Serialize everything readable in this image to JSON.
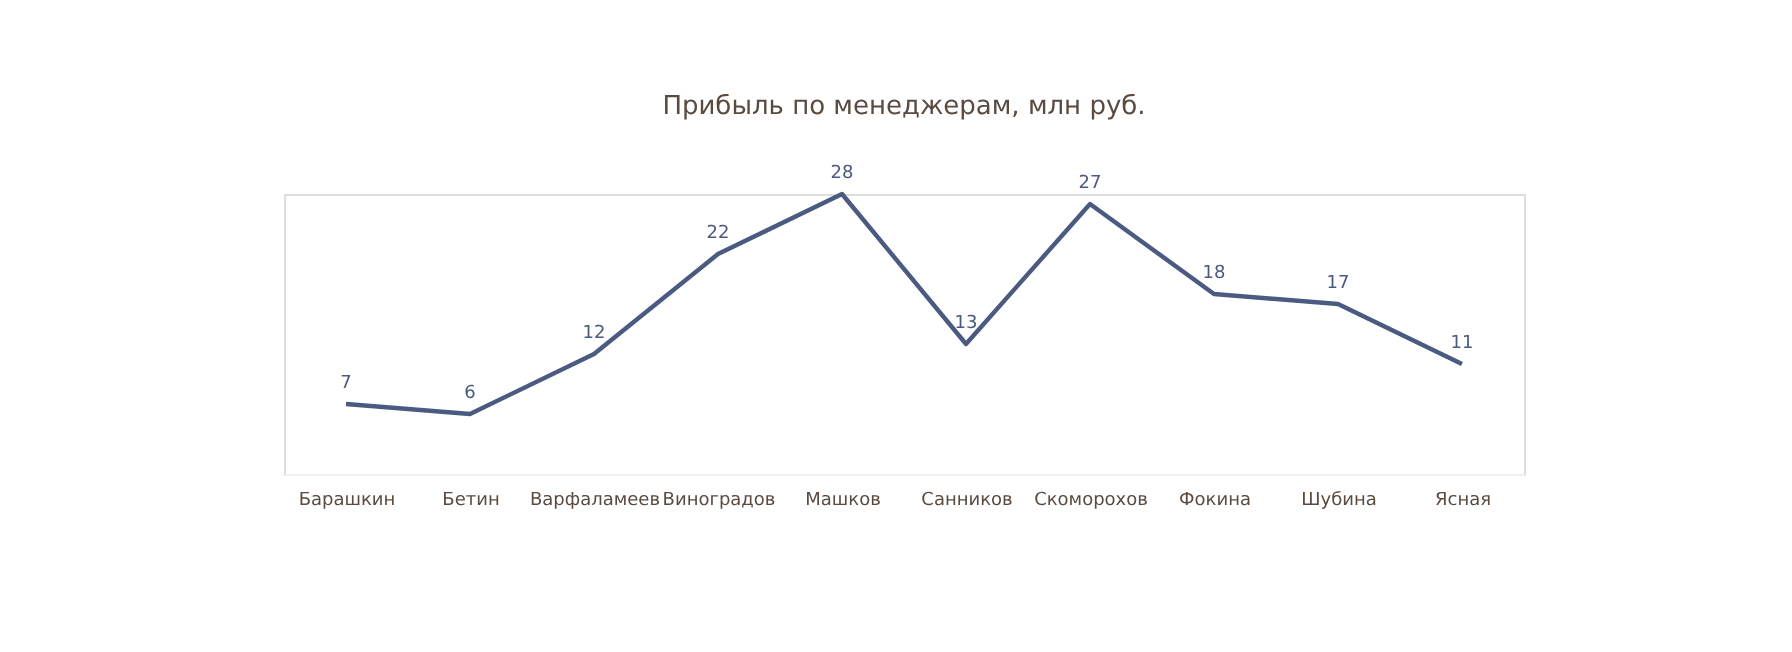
{
  "chart_data": {
    "type": "line",
    "title": "Прибыль по менеджерам, млн руб.",
    "categories": [
      "Барашкин",
      "Бетин",
      "Варфаламеев",
      "Виноградов",
      "Машков",
      "Санников",
      "Скоморохов",
      "Фокина",
      "Шубина",
      "Ясная"
    ],
    "series": [
      {
        "color": "#4a5a80",
        "values": [
          7,
          6,
          12,
          22,
          28,
          13,
          27,
          18,
          17,
          11
        ]
      }
    ],
    "ylim": [
      0,
      28
    ],
    "data_labels": true,
    "grid": false,
    "marker": "none",
    "line_style": "solid",
    "tick_labels": "x"
  }
}
